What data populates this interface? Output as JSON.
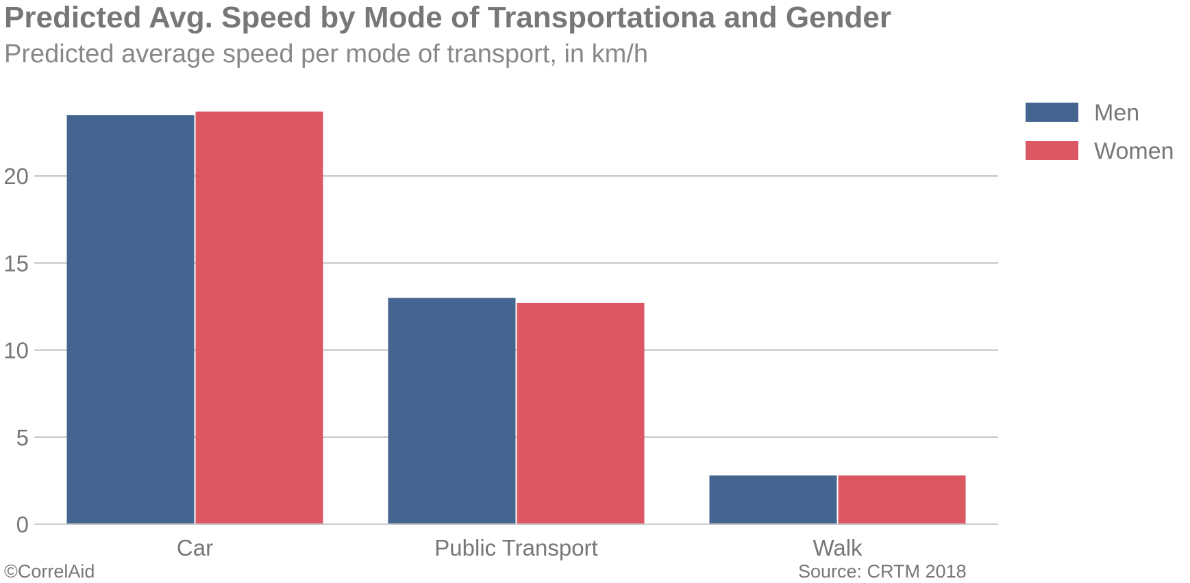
{
  "chart_data": {
    "type": "bar",
    "title": "Predicted Avg. Speed by Mode of Transportationa and Gender",
    "subtitle": "Predicted average speed per mode of transport, in km/h",
    "categories": [
      "Car",
      "Public Transport",
      "Walk"
    ],
    "series": [
      {
        "name": "Men",
        "color": "#456591",
        "values": [
          23.5,
          13.0,
          2.8
        ]
      },
      {
        "name": "Women",
        "color": "#db5862",
        "values": [
          23.7,
          12.7,
          2.8
        ]
      }
    ],
    "xlabel": "",
    "ylabel": "",
    "ylim": [
      0,
      25
    ],
    "yticks": [
      0,
      5,
      10,
      15,
      20
    ],
    "grid": true,
    "legend_position": "top-right",
    "caption_left": "©CorrelAid",
    "caption_right": "Source: CRTM 2018"
  }
}
